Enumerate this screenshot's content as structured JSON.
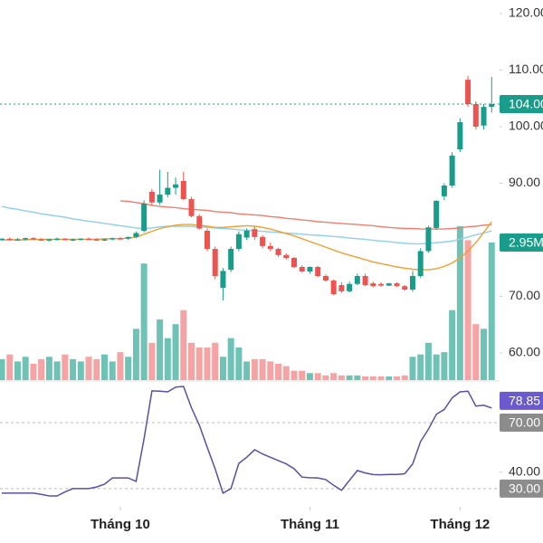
{
  "chart_data": [
    {
      "type": "candlestick",
      "up_color": "#1a9c8a",
      "down_color": "#ef5350",
      "ylim": [
        55.2,
        122.4
      ],
      "yticks": [
        {
          "value": 60,
          "label": "60.00"
        },
        {
          "value": 70,
          "label": "70.00"
        },
        {
          "value": 90,
          "label": "90.00"
        },
        {
          "value": 100,
          "label": "100.00"
        },
        {
          "value": 110,
          "label": "110.00"
        },
        {
          "value": 120,
          "label": "120.00"
        }
      ],
      "xticks": [
        {
          "value": 15,
          "label": "Tháng 10"
        },
        {
          "value": 39,
          "label": "Tháng 11"
        },
        {
          "value": 58,
          "label": "Tháng 12"
        }
      ],
      "last_label": "104.00",
      "open": [
        80.0,
        80.2,
        80.0,
        80.1,
        80.3,
        80.1,
        79.9,
        80.1,
        80.2,
        80.0,
        80.1,
        80.2,
        80.1,
        80.0,
        80.1,
        80.3,
        80.2,
        80.5,
        81.6,
        88.5,
        86.6,
        88.0,
        89.2,
        90.4,
        87.2,
        84.2,
        81.6,
        78.4,
        71.5,
        74.7,
        78.4,
        80.4,
        81.9,
        80.5,
        78.9,
        78.4,
        77.3,
        76.8,
        75.2,
        74.4,
        75.2,
        73.6,
        72.8,
        72.0,
        70.9,
        72.2,
        73.6,
        72.3,
        72.2,
        71.9,
        72.3,
        71.8,
        71.2,
        73.6,
        78.0,
        82.1,
        87.7,
        89.6,
        96.0,
        108.3,
        104.0,
        100.2,
        103.5
      ],
      "high": [
        80.3,
        80.4,
        80.3,
        80.4,
        80.5,
        80.3,
        80.2,
        80.4,
        80.3,
        80.2,
        80.3,
        80.4,
        80.3,
        80.2,
        80.4,
        80.5,
        80.6,
        81.5,
        87.0,
        89.0,
        92.4,
        92.0,
        91.0,
        92.0,
        87.6,
        84.5,
        82.0,
        78.8,
        75.0,
        78.8,
        81.5,
        82.0,
        82.3,
        80.8,
        79.5,
        78.6,
        77.6,
        77.0,
        75.5,
        75.3,
        75.4,
        73.9,
        73.0,
        72.5,
        72.6,
        74.0,
        74.0,
        72.6,
        72.5,
        72.4,
        72.5,
        72.0,
        74.5,
        78.5,
        82.5,
        87.0,
        90.0,
        95.5,
        101.5,
        109.0,
        104.5,
        104.0,
        108.8
      ],
      "low": [
        79.8,
        79.9,
        79.8,
        79.9,
        80.0,
        79.8,
        79.7,
        79.9,
        79.9,
        79.8,
        79.9,
        80.0,
        79.9,
        79.8,
        79.9,
        80.0,
        80.0,
        80.3,
        81.3,
        86.0,
        86.2,
        87.5,
        88.0,
        87.0,
        84.0,
        81.8,
        78.0,
        73.0,
        69.3,
        74.3,
        78.0,
        80.0,
        80.0,
        78.5,
        78.0,
        77.0,
        76.5,
        75.0,
        74.2,
        74.0,
        73.4,
        72.6,
        70.2,
        70.6,
        70.7,
        72.0,
        71.8,
        71.6,
        71.7,
        71.8,
        71.7,
        71.0,
        70.8,
        73.3,
        77.7,
        81.8,
        87.0,
        89.2,
        95.5,
        103.5,
        99.5,
        99.5,
        102.5
      ],
      "close": [
        80.2,
        80.0,
        80.1,
        80.3,
        80.1,
        79.9,
        80.1,
        80.2,
        80.0,
        80.1,
        80.2,
        80.1,
        80.0,
        80.1,
        80.3,
        80.2,
        80.5,
        81.2,
        86.4,
        86.6,
        88.0,
        89.2,
        89.8,
        87.2,
        84.2,
        82.0,
        78.4,
        73.6,
        74.5,
        78.4,
        81.0,
        81.6,
        80.5,
        78.9,
        78.4,
        77.3,
        76.8,
        75.2,
        74.4,
        75.2,
        73.6,
        72.8,
        70.4,
        70.9,
        72.2,
        73.6,
        72.0,
        71.8,
        71.9,
        72.3,
        71.8,
        71.2,
        73.6,
        78.0,
        82.2,
        86.9,
        89.6,
        94.9,
        100.8,
        104.0,
        100.0,
        103.5,
        104.0
      ],
      "series": [
        {
          "color": "#8ecfea",
          "values": [
            85.9,
            85.6,
            85.4,
            85.1,
            84.9,
            84.6,
            84.4,
            84.2,
            84.0,
            83.7,
            83.5,
            83.3,
            83.1,
            82.9,
            82.7,
            82.5,
            82.3,
            82.1,
            82.0,
            82.1,
            82.3,
            82.4,
            82.4,
            82.4,
            82.4,
            82.3,
            82.2,
            82.1,
            82.0,
            81.9,
            81.8,
            81.7,
            81.6,
            81.5,
            81.4,
            81.3,
            81.2,
            81.1,
            81.0,
            80.9,
            80.8,
            80.7,
            80.6,
            80.5,
            80.3,
            80.2,
            80.1,
            79.9,
            79.8,
            79.7,
            79.5,
            79.4,
            79.3,
            79.3,
            79.4,
            79.5,
            79.6,
            79.8,
            80.1,
            80.5,
            80.9,
            81.2,
            81.6
          ]
        },
        {
          "color": "#ee7f6e",
          "values": [
            null,
            null,
            null,
            null,
            null,
            null,
            null,
            null,
            null,
            null,
            null,
            null,
            null,
            null,
            null,
            86.9,
            86.8,
            86.6,
            86.4,
            86.1,
            85.9,
            85.8,
            85.7,
            85.5,
            85.4,
            85.3,
            85.2,
            85.0,
            84.9,
            84.8,
            84.6,
            84.5,
            84.4,
            84.3,
            84.1,
            84.0,
            83.8,
            83.7,
            83.5,
            83.4,
            83.2,
            83.1,
            83.0,
            82.9,
            82.8,
            82.7,
            82.6,
            82.5,
            82.3,
            82.2,
            82.1,
            82.0,
            82.0,
            81.9,
            81.9,
            81.9,
            81.9,
            82.0,
            82.1,
            82.3,
            82.4,
            82.6,
            82.7
          ]
        },
        {
          "color": "#f0a030",
          "values": [
            80.0,
            80.0,
            80.0,
            80.0,
            80.1,
            80.1,
            80.1,
            80.1,
            80.1,
            80.1,
            80.1,
            80.1,
            80.1,
            80.2,
            80.2,
            80.2,
            80.3,
            80.5,
            81.0,
            81.5,
            82.0,
            82.3,
            82.6,
            82.7,
            82.7,
            82.6,
            82.4,
            82.2,
            82.2,
            82.3,
            82.4,
            82.5,
            82.4,
            82.2,
            81.9,
            81.5,
            81.1,
            80.7,
            80.2,
            79.7,
            79.2,
            78.7,
            78.2,
            77.7,
            77.3,
            76.9,
            76.5,
            76.1,
            75.8,
            75.5,
            75.2,
            75.0,
            74.8,
            74.7,
            74.7,
            74.9,
            75.3,
            75.9,
            76.8,
            78.0,
            79.5,
            81.3,
            83.2
          ]
        }
      ],
      "volume": {
        "ylim": [
          0,
          8.15
        ],
        "last_label": "2.95M",
        "values": [
          0.45,
          0.55,
          0.4,
          0.5,
          0.35,
          0.45,
          0.5,
          0.4,
          0.55,
          0.45,
          0.4,
          0.5,
          0.45,
          0.55,
          0.4,
          0.6,
          0.5,
          1.1,
          2.5,
          0.8,
          1.3,
          0.9,
          1.2,
          1.5,
          0.8,
          0.7,
          0.7,
          0.8,
          0.5,
          0.9,
          0.7,
          0.4,
          0.45,
          0.45,
          0.4,
          0.35,
          0.3,
          0.2,
          0.2,
          0.15,
          0.15,
          0.1,
          0.15,
          0.1,
          0.1,
          0.1,
          0.08,
          0.08,
          0.08,
          0.08,
          0.08,
          0.1,
          0.5,
          0.55,
          0.8,
          0.55,
          0.6,
          1.5,
          3.3,
          3.0,
          1.2,
          1.1,
          2.95
        ]
      }
    },
    {
      "type": "line",
      "color": "#5b4ea6",
      "ylim": [
        19,
        93
      ],
      "yticks": [
        {
          "value": 40,
          "label": "40.00"
        }
      ],
      "reference_lines": [
        {
          "value": 30,
          "label": "30.00"
        },
        {
          "value": 70,
          "label": "70.00"
        }
      ],
      "values": [
        27.3,
        27.3,
        27.3,
        27.3,
        27.3,
        26.5,
        25.6,
        25.6,
        28,
        30,
        30,
        30,
        31,
        32.7,
        36.5,
        36.5,
        36.5,
        34.4,
        60,
        89.2,
        89,
        88.6,
        91.5,
        91.9,
        79,
        68.4,
        55,
        42,
        27.3,
        30,
        45.3,
        49,
        53.6,
        51,
        49,
        47,
        45,
        42,
        37,
        36.6,
        36.5,
        35.5,
        32,
        29,
        35,
        41,
        39.5,
        38.5,
        38.4,
        38.6,
        38.6,
        39,
        45,
        58.5,
        66,
        75,
        78,
        85,
        88.6,
        89,
        80,
        80.5,
        78.85
      ]
    }
  ]
}
